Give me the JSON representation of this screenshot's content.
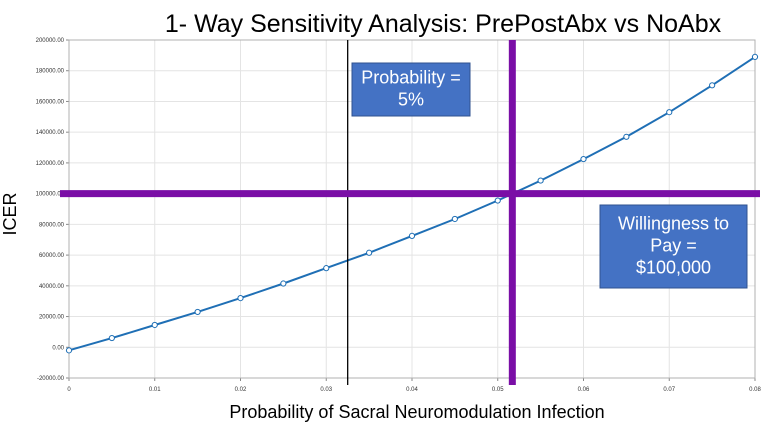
{
  "chart_data": {
    "type": "line",
    "title": "1- Way Sensitivity Analysis: PrePostAbx vs NoAbx",
    "xlabel": "Probability of Sacral Neuromodulation Infection",
    "ylabel": "ICER",
    "xlim": [
      0,
      0.08
    ],
    "ylim": [
      -20000,
      200000
    ],
    "x_ticks": [
      0,
      0.01,
      0.02,
      0.03,
      0.04,
      0.05,
      0.06,
      0.07,
      0.08
    ],
    "x_tick_labels": [
      "0",
      "0.01",
      "0.02",
      "0.03",
      "0.04",
      "0.05",
      "0.06",
      "0.07",
      "0.08"
    ],
    "y_ticks": [
      -20000,
      0,
      20000,
      40000,
      60000,
      80000,
      100000,
      120000,
      140000,
      160000,
      180000,
      200000
    ],
    "y_tick_labels": [
      "-20000.00",
      "0.00",
      "20000.00",
      "40000.00",
      "60000.00",
      "80000.00",
      "100000.00",
      "120000.00",
      "140000.00",
      "160000.00",
      "180000.00",
      "200000.00"
    ],
    "grid": true,
    "series": [
      {
        "color": "#1f6fb5",
        "x": [
          0,
          0.005,
          0.01,
          0.015,
          0.02,
          0.025,
          0.03,
          0.035,
          0.04,
          0.045,
          0.05,
          0.055,
          0.06,
          0.065,
          0.07,
          0.075,
          0.08
        ],
        "y": [
          -2000,
          6000,
          14500,
          23000,
          32000,
          41500,
          51500,
          61500,
          72500,
          83500,
          95500,
          108500,
          122500,
          137000,
          153000,
          170500,
          189000
        ]
      }
    ],
    "reference_lines": [
      {
        "orientation": "vertical",
        "x": 0.0325,
        "color": "#000000"
      },
      {
        "orientation": "vertical",
        "x": 0.0517,
        "color": "#7a0ea6"
      },
      {
        "orientation": "horizontal",
        "y": 100000,
        "color": "#7a0ea6"
      }
    ],
    "annotations": [
      {
        "lines": [
          "Probability =",
          "5%"
        ]
      },
      {
        "lines": [
          "Willingness to",
          "Pay =",
          "$100,000"
        ]
      }
    ]
  }
}
